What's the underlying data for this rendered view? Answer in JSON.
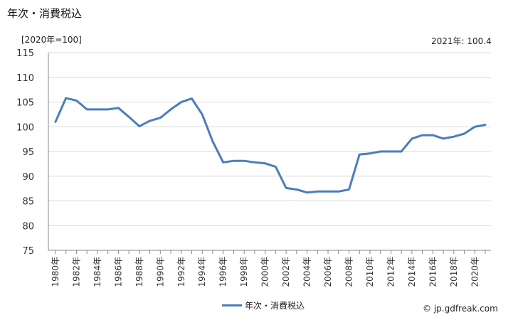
{
  "title": "年次・消費税込",
  "unit_label": "[2020年=100]",
  "note": "2021年: 100.4",
  "source": "© jp.gdfreak.com",
  "colors": {
    "series": "#4a7ebb",
    "grid": "#d9d9d9",
    "axis": "#888888"
  },
  "chart_data": {
    "type": "line",
    "title": "年次・消費税込",
    "ylabel": "[2020年=100]",
    "xlabel": "",
    "ylim": [
      75,
      115
    ],
    "yticks": [
      75,
      80,
      85,
      90,
      95,
      100,
      105,
      110,
      115
    ],
    "grid": true,
    "legend_position": "bottom",
    "x": [
      "1980年",
      "1981年",
      "1982年",
      "1983年",
      "1984年",
      "1985年",
      "1986年",
      "1987年",
      "1988年",
      "1989年",
      "1990年",
      "1991年",
      "1992年",
      "1993年",
      "1994年",
      "1995年",
      "1996年",
      "1997年",
      "1998年",
      "1999年",
      "2000年",
      "2001年",
      "2002年",
      "2003年",
      "2004年",
      "2005年",
      "2006年",
      "2007年",
      "2008年",
      "2009年",
      "2010年",
      "2011年",
      "2012年",
      "2013年",
      "2014年",
      "2015年",
      "2016年",
      "2017年",
      "2018年",
      "2019年",
      "2020年",
      "2021年"
    ],
    "xtick_labels": [
      "1980年",
      "1982年",
      "1984年",
      "1986年",
      "1988年",
      "1990年",
      "1992年",
      "1994年",
      "1996年",
      "1998年",
      "2000年",
      "2002年",
      "2004年",
      "2006年",
      "2008年",
      "2010年",
      "2012年",
      "2014年",
      "2016年",
      "2018年",
      "2020年"
    ],
    "series": [
      {
        "name": "年次・消費税込",
        "values": [
          101.0,
          105.8,
          105.3,
          103.5,
          103.5,
          103.5,
          103.8,
          102.0,
          100.1,
          101.2,
          101.8,
          103.5,
          105.0,
          105.7,
          102.5,
          97.0,
          92.8,
          93.1,
          93.1,
          92.8,
          92.6,
          91.9,
          87.6,
          87.3,
          86.7,
          86.9,
          86.9,
          86.9,
          87.3,
          94.4,
          94.6,
          95.0,
          95.0,
          95.0,
          97.6,
          98.3,
          98.3,
          97.6,
          98.0,
          98.6,
          100.0,
          100.4
        ]
      }
    ]
  }
}
